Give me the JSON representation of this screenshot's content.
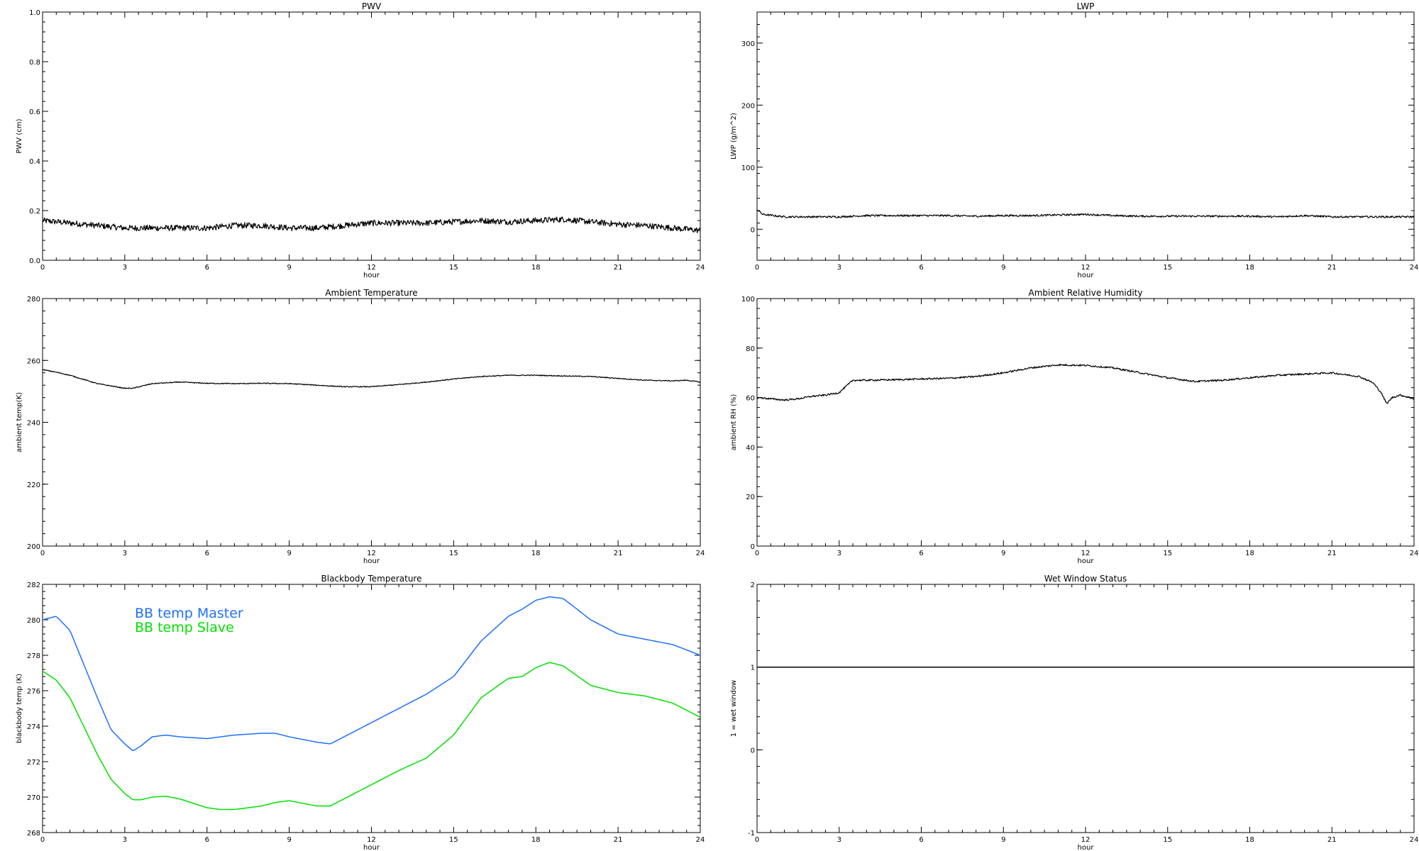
{
  "chart_data": [
    {
      "id": "pwv",
      "type": "line",
      "title": "PWV",
      "xlabel": "hour",
      "ylabel": "PWV (cm)",
      "xlim": [
        0,
        24
      ],
      "ylim": [
        0.0,
        1.0
      ],
      "xticks": [
        "0",
        "3",
        "6",
        "9",
        "12",
        "15",
        "18",
        "21",
        "24"
      ],
      "yticks": [
        "0.0",
        "0.2",
        "0.4",
        "0.6",
        "0.8",
        "1.0"
      ],
      "grid": false,
      "series": [
        {
          "color": "#000000",
          "noise": 0.012,
          "x": [
            0,
            1,
            2,
            3,
            4,
            5,
            6,
            7,
            8,
            9,
            10,
            11,
            12,
            13,
            14,
            15,
            16,
            17,
            18,
            19,
            20,
            21,
            22,
            23,
            24
          ],
          "y": [
            0.16,
            0.15,
            0.14,
            0.13,
            0.13,
            0.13,
            0.13,
            0.14,
            0.14,
            0.13,
            0.13,
            0.14,
            0.15,
            0.15,
            0.15,
            0.155,
            0.16,
            0.155,
            0.16,
            0.165,
            0.155,
            0.145,
            0.14,
            0.13,
            0.12
          ]
        }
      ]
    },
    {
      "id": "lwp",
      "type": "line",
      "title": "LWP",
      "xlabel": "hour",
      "ylabel": "LWP (g/m^2)",
      "xlim": [
        0,
        24
      ],
      "ylim": [
        -50,
        350
      ],
      "xticks": [
        "0",
        "3",
        "6",
        "9",
        "12",
        "15",
        "18",
        "21",
        "24"
      ],
      "yticks": [
        "0",
        "100",
        "200",
        "300"
      ],
      "ytick_values": [
        0,
        100,
        200,
        300
      ],
      "grid": false,
      "series": [
        {
          "color": "#000000",
          "noise": 1.5,
          "x": [
            0,
            0.2,
            1,
            2,
            3,
            4,
            5,
            6,
            7,
            8,
            9,
            10,
            11,
            12,
            13,
            14,
            15,
            16,
            17,
            18,
            19,
            20,
            21,
            22,
            23,
            24
          ],
          "y": [
            32,
            24,
            20,
            20,
            20,
            22,
            22,
            22,
            22,
            21,
            22,
            22,
            23,
            24,
            22,
            21,
            21,
            21,
            21,
            21,
            20,
            22,
            20,
            20,
            20,
            20
          ]
        }
      ]
    },
    {
      "id": "ambient-temp",
      "type": "line",
      "title": "Ambient Temperature",
      "xlabel": "hour",
      "ylabel": "ambient temp(K)",
      "xlim": [
        0,
        24
      ],
      "ylim": [
        200,
        280
      ],
      "xticks": [
        "0",
        "3",
        "6",
        "9",
        "12",
        "15",
        "18",
        "21",
        "24"
      ],
      "yticks": [
        "200",
        "220",
        "240",
        "260",
        "280"
      ],
      "grid": false,
      "series": [
        {
          "color": "#000000",
          "noise": 0.15,
          "x": [
            0,
            0.5,
            1,
            2,
            3,
            3.3,
            4,
            5,
            6,
            7,
            8,
            9,
            10,
            11,
            12,
            13,
            14,
            15,
            16,
            17,
            18,
            19,
            20,
            21,
            22,
            23,
            23.5,
            24
          ],
          "y": [
            257,
            256.2,
            255.2,
            252.5,
            251,
            251,
            252.5,
            253,
            252.6,
            252.5,
            252.6,
            252.5,
            252,
            251.5,
            251.5,
            252.2,
            253,
            254,
            254.8,
            255.2,
            255.2,
            255,
            254.8,
            254.2,
            253.6,
            253.4,
            253.6,
            253
          ]
        }
      ]
    },
    {
      "id": "ambient-rh",
      "type": "line",
      "title": "Ambient Relative Humidity",
      "xlabel": "hour",
      "ylabel": "ambient RH (%)",
      "xlim": [
        0,
        24
      ],
      "ylim": [
        0,
        100
      ],
      "xticks": [
        "0",
        "3",
        "6",
        "9",
        "12",
        "15",
        "18",
        "21",
        "24"
      ],
      "yticks": [
        "0",
        "20",
        "40",
        "60",
        "80",
        "100"
      ],
      "grid": false,
      "series": [
        {
          "color": "#000000",
          "noise": 0.35,
          "x": [
            0,
            0.5,
            1,
            1.5,
            2,
            2.5,
            3,
            3.2,
            3.5,
            4,
            5,
            6,
            7,
            8,
            9,
            10,
            11,
            12,
            13,
            14,
            15,
            16,
            17,
            18,
            19,
            20,
            21,
            22,
            22.5,
            22.8,
            23,
            23.2,
            23.5,
            24
          ],
          "y": [
            60,
            59.5,
            59,
            59.5,
            60.5,
            61,
            62,
            64,
            67,
            67,
            67.2,
            67.5,
            67.8,
            68.5,
            70,
            72,
            73.2,
            73,
            72,
            70,
            68,
            66.5,
            67,
            68,
            69,
            69.5,
            70,
            68.5,
            66,
            62,
            57.5,
            60,
            61,
            59.5
          ]
        }
      ]
    },
    {
      "id": "blackbody",
      "type": "line",
      "title": "Blackbody Temperature",
      "xlabel": "hour",
      "ylabel": "blackbody temp (K)",
      "xlim": [
        0,
        24
      ],
      "ylim": [
        268,
        282
      ],
      "xticks": [
        "0",
        "3",
        "6",
        "9",
        "12",
        "15",
        "18",
        "21",
        "24"
      ],
      "yticks": [
        "268",
        "270",
        "272",
        "274",
        "276",
        "278",
        "280",
        "282"
      ],
      "grid": false,
      "legend": {
        "placement": "top-left",
        "entries": [
          "BB temp Master",
          "BB temp Slave"
        ]
      },
      "series": [
        {
          "name": "BB temp Master",
          "color": "#1f6fff",
          "noise": 0,
          "x": [
            0,
            0.5,
            1,
            1.5,
            2,
            2.5,
            3,
            3.3,
            3.6,
            4,
            4.5,
            5,
            6,
            7,
            8,
            8.5,
            9,
            10,
            10.5,
            11,
            12,
            13,
            14,
            15,
            16,
            17,
            17.5,
            18,
            18.5,
            19,
            20,
            21,
            22,
            23,
            24
          ],
          "y": [
            280,
            280.2,
            279.4,
            277.5,
            275.6,
            273.8,
            273,
            272.6,
            272.9,
            273.4,
            273.5,
            273.4,
            273.3,
            273.5,
            273.6,
            273.6,
            273.4,
            273.1,
            273,
            273.4,
            274.2,
            275,
            275.8,
            276.8,
            278.8,
            280.2,
            280.6,
            281.1,
            281.3,
            281.2,
            280,
            279.2,
            278.9,
            278.6,
            278
          ]
        },
        {
          "name": "BB temp Slave",
          "color": "#00e000",
          "noise": 0,
          "x": [
            0,
            0.5,
            1,
            1.5,
            2,
            2.5,
            3,
            3.3,
            3.6,
            4,
            4.5,
            5,
            6,
            6.5,
            7,
            8,
            8.5,
            9,
            10,
            10.5,
            11,
            12,
            13,
            14,
            15,
            16,
            17,
            17.5,
            18,
            18.5,
            19,
            20,
            21,
            22,
            23,
            24
          ],
          "y": [
            277.1,
            276.6,
            275.6,
            274,
            272.4,
            271,
            270.2,
            269.85,
            269.85,
            270,
            270.05,
            269.9,
            269.4,
            269.3,
            269.3,
            269.5,
            269.7,
            269.8,
            269.5,
            269.5,
            269.9,
            270.7,
            271.5,
            272.2,
            273.5,
            275.6,
            276.7,
            276.8,
            277.3,
            277.6,
            277.4,
            276.3,
            275.9,
            275.7,
            275.3,
            274.5
          ]
        }
      ]
    },
    {
      "id": "wet-window",
      "type": "line",
      "title": "Wet Window Status",
      "xlabel": "hour",
      "ylabel": "1 = wet window",
      "xlim": [
        0,
        24
      ],
      "ylim": [
        -1,
        2
      ],
      "xticks": [
        "0",
        "3",
        "6",
        "9",
        "12",
        "15",
        "18",
        "21",
        "24"
      ],
      "yticks": [
        "-1",
        "0",
        "1",
        "2"
      ],
      "grid": false,
      "series": [
        {
          "color": "#000000",
          "noise": 0,
          "x": [
            0,
            24
          ],
          "y": [
            1,
            1
          ]
        }
      ]
    }
  ]
}
